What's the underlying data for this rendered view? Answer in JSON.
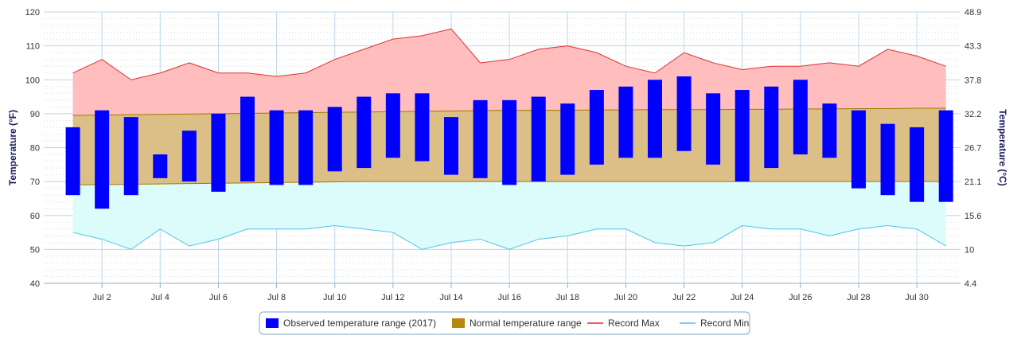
{
  "chart_data": {
    "type": "bar",
    "x": [
      1,
      2,
      3,
      4,
      5,
      6,
      7,
      8,
      9,
      10,
      11,
      12,
      13,
      14,
      15,
      16,
      17,
      18,
      19,
      20,
      21,
      22,
      23,
      24,
      25,
      26,
      27,
      28,
      29,
      30,
      31
    ],
    "x_tick_labels": [
      {
        "day": 2,
        "label": "Jul 2"
      },
      {
        "day": 4,
        "label": "Jul 4"
      },
      {
        "day": 6,
        "label": "Jul 6"
      },
      {
        "day": 8,
        "label": "Jul 8"
      },
      {
        "day": 10,
        "label": "Jul 10"
      },
      {
        "day": 12,
        "label": "Jul 12"
      },
      {
        "day": 14,
        "label": "Jul 14"
      },
      {
        "day": 16,
        "label": "Jul 16"
      },
      {
        "day": 18,
        "label": "Jul 18"
      },
      {
        "day": 20,
        "label": "Jul 20"
      },
      {
        "day": 22,
        "label": "Jul 22"
      },
      {
        "day": 24,
        "label": "Jul 24"
      },
      {
        "day": 26,
        "label": "Jul 26"
      },
      {
        "day": 28,
        "label": "Jul 28"
      },
      {
        "day": 30,
        "label": "Jul 30"
      }
    ],
    "ylabel_left": "Temperature (°F)",
    "ylabel_right": "Temperature (°C)",
    "ylim": [
      40,
      120
    ],
    "y_ticks_left": [
      "40",
      "50",
      "60",
      "70",
      "80",
      "90",
      "100",
      "110",
      "120"
    ],
    "y_ticks_right": [
      "4.4",
      "10",
      "15.6",
      "21.1",
      "26.7",
      "32.2",
      "37.8",
      "43.3",
      "48.9"
    ],
    "grid": true,
    "legend_position": "bottom-center",
    "series": [
      {
        "name": "Observed temperature range (2017)",
        "kind": "range-bar",
        "color": "#0000ff",
        "low": [
          66,
          62,
          66,
          71,
          70,
          67,
          70,
          69,
          69,
          73,
          74,
          77,
          76,
          72,
          71,
          69,
          70,
          72,
          75,
          77,
          77,
          79,
          75,
          70,
          74,
          78,
          77,
          68,
          66,
          64,
          64
        ],
        "high": [
          86,
          91,
          89,
          78,
          85,
          90,
          95,
          91,
          91,
          92,
          95,
          96,
          96,
          89,
          94,
          94,
          95,
          93,
          97,
          98,
          100,
          101,
          96,
          97,
          98,
          100,
          93,
          91,
          87,
          86,
          91
        ]
      },
      {
        "name": "Normal temperature range",
        "kind": "area-range",
        "color": "#b8860b",
        "low": [
          69,
          69.1,
          69.2,
          69.3,
          69.4,
          69.5,
          69.6,
          69.7,
          69.8,
          69.9,
          70,
          70,
          70,
          70,
          70,
          70,
          70,
          70,
          70,
          70,
          70,
          70,
          70,
          70,
          70,
          70,
          70,
          70,
          70,
          70,
          70
        ],
        "high": [
          89.5,
          89.6,
          89.7,
          89.8,
          89.9,
          90,
          90.1,
          90.2,
          90.3,
          90.4,
          90.5,
          90.6,
          90.7,
          90.8,
          90.9,
          91,
          91,
          91,
          91.1,
          91.1,
          91.2,
          91.2,
          91.2,
          91.3,
          91.3,
          91.4,
          91.4,
          91.5,
          91.5,
          91.6,
          91.6
        ]
      },
      {
        "name": "Record Max",
        "kind": "line",
        "color": "#e03030",
        "values": [
          102,
          106,
          100,
          102,
          105,
          102,
          102,
          101,
          102,
          106,
          109,
          112,
          113,
          115,
          105,
          106,
          109,
          110,
          108,
          104,
          102,
          108,
          105,
          103,
          104,
          104,
          105,
          104,
          109,
          107,
          104
        ]
      },
      {
        "name": "Record Min",
        "kind": "line",
        "color": "#4fc3e8",
        "values": [
          55,
          53,
          50,
          56,
          51,
          53,
          56,
          56,
          56,
          57,
          56,
          55,
          50,
          52,
          53,
          50,
          53,
          54,
          56,
          56,
          52,
          51,
          52,
          57,
          56,
          56,
          54,
          56,
          57,
          56,
          51
        ]
      }
    ]
  }
}
